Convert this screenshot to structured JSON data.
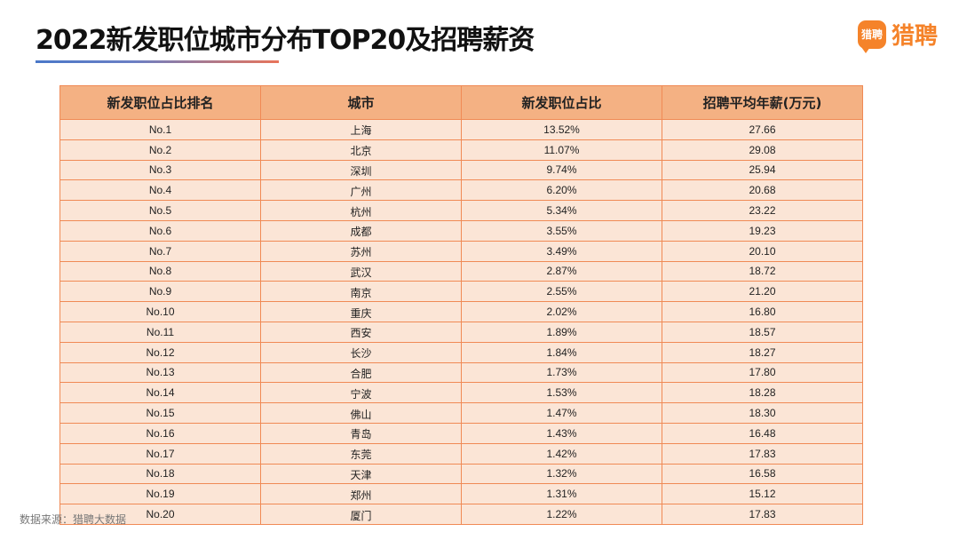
{
  "title": "2022新发职位城市分布TOP20及招聘薪资",
  "logo": {
    "badge": "猎聘",
    "text": "猎聘"
  },
  "table": {
    "headers": [
      "新发职位占比排名",
      "城市",
      "新发职位占比",
      "招聘平均年薪(万元)"
    ],
    "rows": [
      [
        "No.1",
        "上海",
        "13.52%",
        "27.66"
      ],
      [
        "No.2",
        "北京",
        "11.07%",
        "29.08"
      ],
      [
        "No.3",
        "深圳",
        "9.74%",
        "25.94"
      ],
      [
        "No.4",
        "广州",
        "6.20%",
        "20.68"
      ],
      [
        "No.5",
        "杭州",
        "5.34%",
        "23.22"
      ],
      [
        "No.6",
        "成都",
        "3.55%",
        "19.23"
      ],
      [
        "No.7",
        "苏州",
        "3.49%",
        "20.10"
      ],
      [
        "No.8",
        "武汉",
        "2.87%",
        "18.72"
      ],
      [
        "No.9",
        "南京",
        "2.55%",
        "21.20"
      ],
      [
        "No.10",
        "重庆",
        "2.02%",
        "16.80"
      ],
      [
        "No.11",
        "西安",
        "1.89%",
        "18.57"
      ],
      [
        "No.12",
        "长沙",
        "1.84%",
        "18.27"
      ],
      [
        "No.13",
        "合肥",
        "1.73%",
        "17.80"
      ],
      [
        "No.14",
        "宁波",
        "1.53%",
        "18.28"
      ],
      [
        "No.15",
        "佛山",
        "1.47%",
        "18.30"
      ],
      [
        "No.16",
        "青岛",
        "1.43%",
        "16.48"
      ],
      [
        "No.17",
        "东莞",
        "1.42%",
        "17.83"
      ],
      [
        "No.18",
        "天津",
        "1.32%",
        "16.58"
      ],
      [
        "No.19",
        "郑州",
        "1.31%",
        "15.12"
      ],
      [
        "No.20",
        "厦门",
        "1.22%",
        "17.83"
      ]
    ]
  },
  "source": "数据来源：猎聘大数据",
  "colors": {
    "header_bg": "#f4b183",
    "row_bg": "#fbe5d6",
    "border": "#f08a55",
    "brand": "#f5832a"
  }
}
